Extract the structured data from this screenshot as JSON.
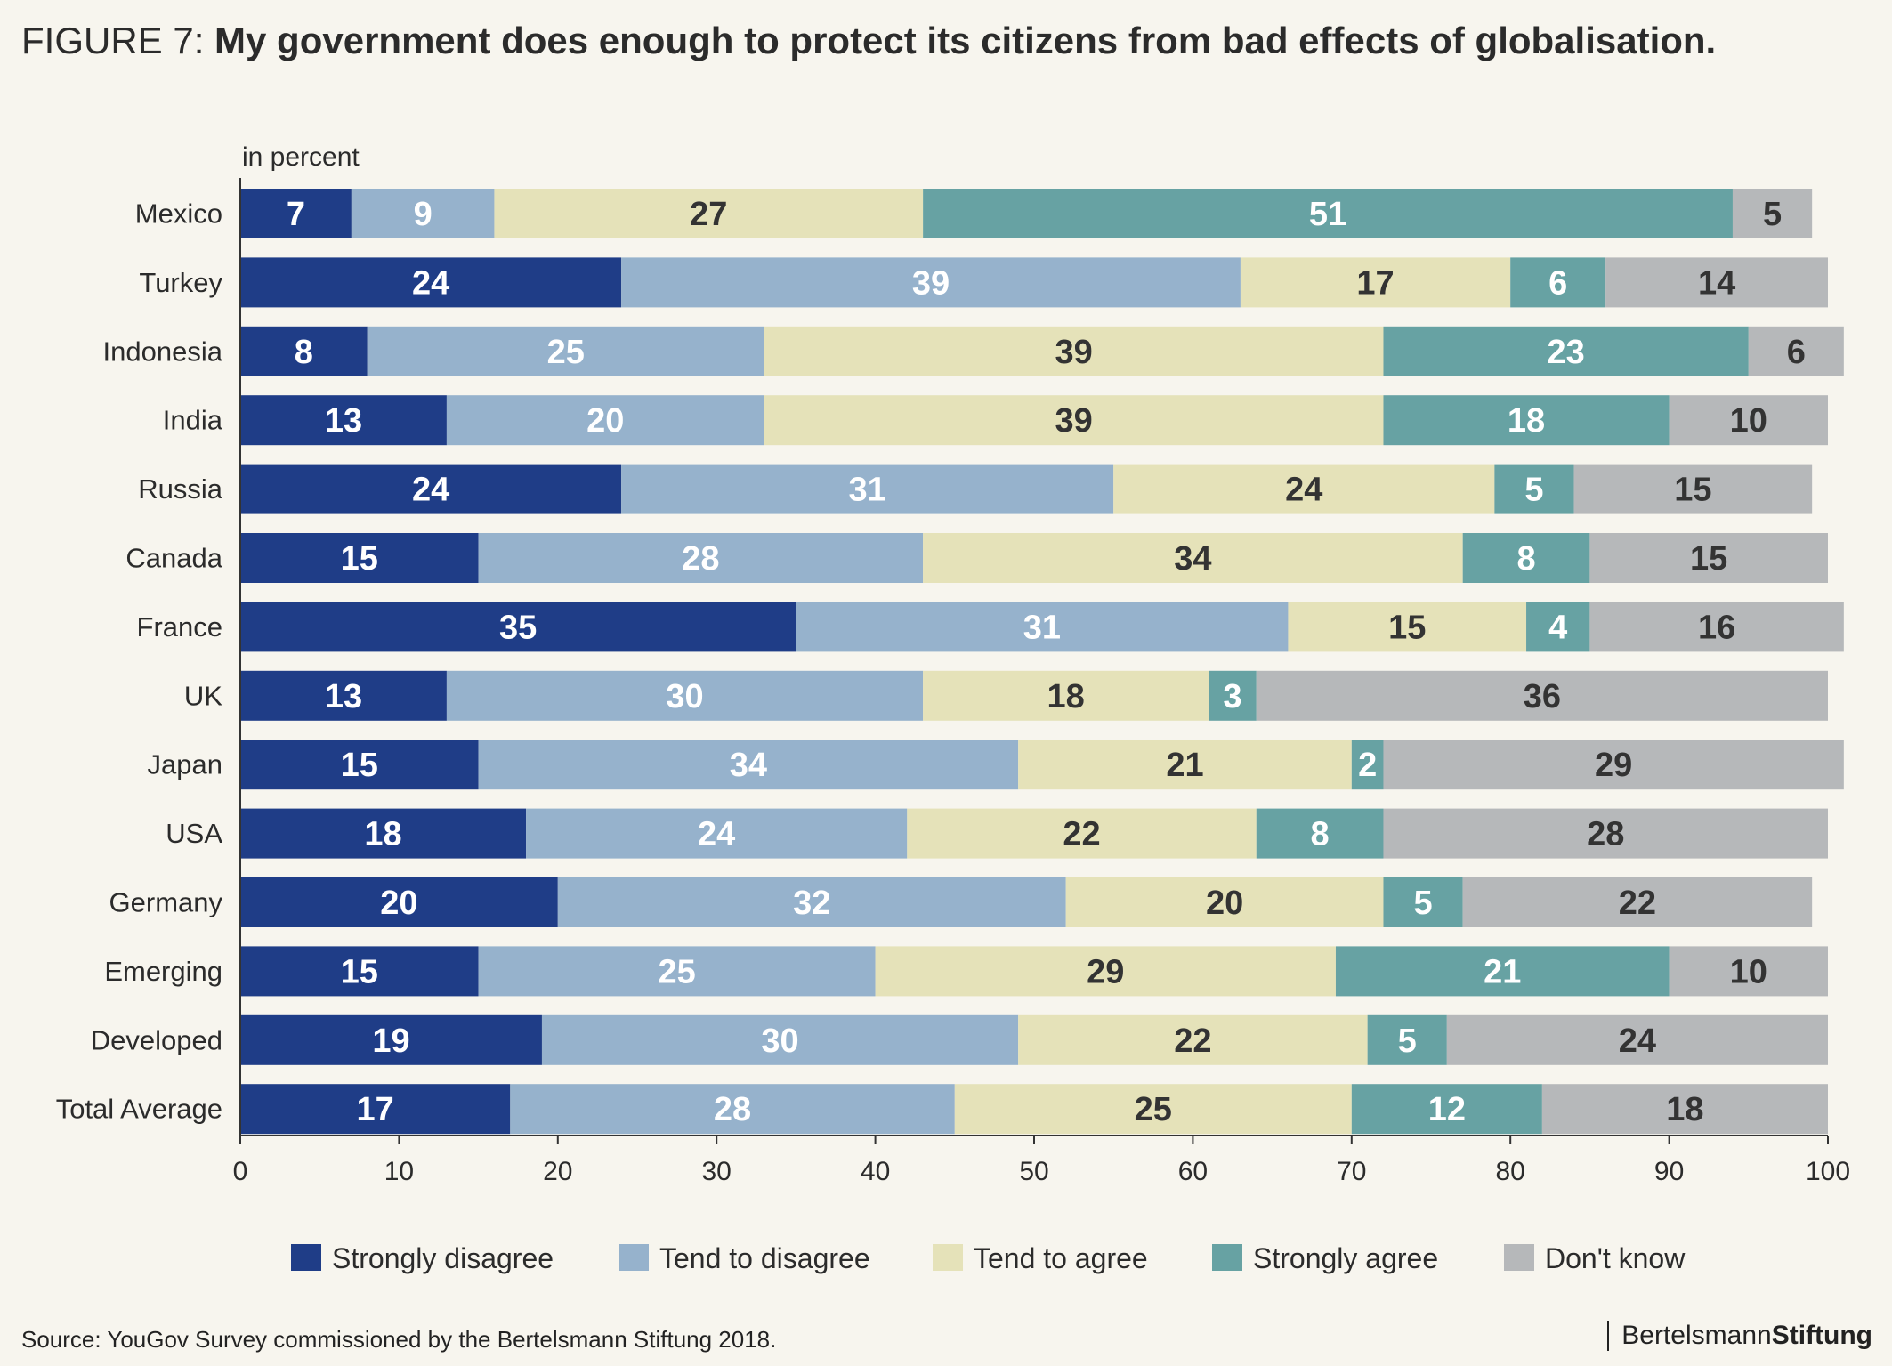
{
  "title": {
    "prefix": "FIGURE 7: ",
    "main": "My government does enough to protect its citizens from bad effects of globalisation."
  },
  "footer": {
    "source": "Source: YouGov Survey commissioned by the Bertelsmann Stiftung 2018.",
    "brand_part1": "Bertelsmann",
    "brand_part2": "Stiftung"
  },
  "chart_data": {
    "type": "bar",
    "orientation": "horizontal",
    "stacked": true,
    "unit_label": "in percent",
    "categories": [
      "Mexico",
      "Turkey",
      "Indonesia",
      "India",
      "Russia",
      "Canada",
      "France",
      "UK",
      "Japan",
      "USA",
      "Germany",
      "Emerging",
      "Developed",
      "Total Average"
    ],
    "series": [
      {
        "name": "Strongly disagree",
        "color": "#1f3d87",
        "label_color": "#ffffff",
        "values": [
          7,
          24,
          8,
          13,
          24,
          15,
          35,
          13,
          15,
          18,
          20,
          15,
          19,
          17
        ]
      },
      {
        "name": "Tend to disagree",
        "color": "#96b2cc",
        "label_color": "#ffffff",
        "values": [
          9,
          39,
          25,
          20,
          31,
          28,
          31,
          30,
          34,
          24,
          32,
          25,
          30,
          28
        ]
      },
      {
        "name": "Tend to agree",
        "color": "#e5e2b9",
        "label_color": "#333333",
        "values": [
          27,
          17,
          39,
          39,
          24,
          34,
          15,
          18,
          21,
          22,
          20,
          29,
          22,
          25
        ]
      },
      {
        "name": "Strongly agree",
        "color": "#67a2a3",
        "label_color": "#ffffff",
        "values": [
          51,
          6,
          23,
          18,
          5,
          8,
          4,
          3,
          2,
          8,
          5,
          21,
          5,
          12
        ]
      },
      {
        "name": "Don't know",
        "color": "#b6b8ba",
        "label_color": "#333333",
        "values": [
          5,
          14,
          6,
          10,
          15,
          15,
          16,
          36,
          29,
          28,
          22,
          10,
          24,
          18
        ]
      }
    ],
    "xlim": [
      0,
      100
    ],
    "xticks": [
      0,
      10,
      20,
      30,
      40,
      50,
      60,
      70,
      80,
      90,
      100
    ],
    "grid": false,
    "legend_position": "bottom"
  }
}
